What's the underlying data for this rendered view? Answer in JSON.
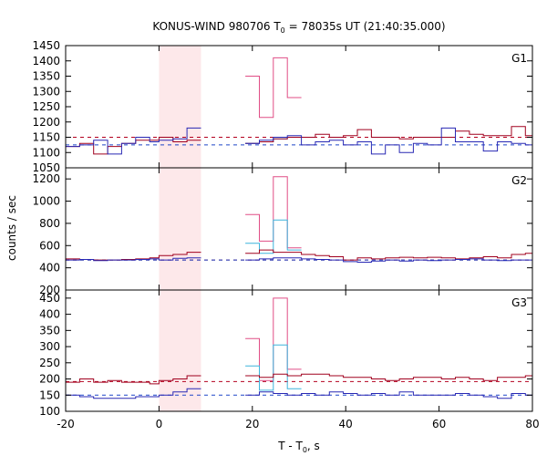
{
  "chart_data": {
    "type": "line",
    "title_main": "KONUS-WIND 980706 T",
    "title_sub": "0",
    "title_rest": " = 78035s UT (21:40:35.000)",
    "xlabel_main": "T - T",
    "xlabel_sub": "0",
    "xlabel_rest": ", s",
    "ylabel": "counts / sec",
    "xlim": [
      -20,
      80
    ],
    "xticks": [
      -20,
      0,
      20,
      40,
      60,
      80
    ],
    "highlight_interval": [
      0,
      9
    ],
    "colors": {
      "highlight": "#fde8ea",
      "dark_red": "#a0001e",
      "pink": "#e04e86",
      "blue": "#2828b4",
      "cyan": "#3cb4dc",
      "bg_red": "#b4001e",
      "bg_blue": "#1e46c8"
    },
    "panels": [
      {
        "label": "G1",
        "ylim": [
          1050,
          1450
        ],
        "yticks": [
          1050,
          1100,
          1150,
          1200,
          1250,
          1300,
          1350,
          1400,
          1450
        ],
        "bg_red": 1150,
        "bg_blue": 1125,
        "red_pre": {
          "edges": [
            -20,
            -17,
            -14,
            -11,
            -8,
            -5,
            -2,
            0,
            3,
            6,
            9
          ],
          "values": [
            1120,
            1130,
            1095,
            1120,
            1130,
            1140,
            1140,
            1150,
            1135,
            1140
          ]
        },
        "blue_pre": {
          "edges": [
            -20,
            -17,
            -14,
            -11,
            -8,
            -5,
            -2,
            0,
            3,
            6,
            9
          ],
          "values": [
            1120,
            1125,
            1140,
            1095,
            1130,
            1150,
            1135,
            1140,
            1145,
            1180
          ]
        },
        "red_post": {
          "edges": [
            18.5,
            21.5,
            24.5,
            27.5,
            30.5,
            33.5,
            36.5,
            39.5,
            42.5,
            45.5,
            48.5,
            51.5,
            54.5,
            57.5,
            60.5,
            63.5,
            66.5,
            69.5,
            72.5,
            75.5,
            78.5,
            80
          ],
          "values": [
            1130,
            1135,
            1145,
            1150,
            1150,
            1160,
            1150,
            1155,
            1175,
            1150,
            1150,
            1145,
            1150,
            1150,
            1150,
            1170,
            1160,
            1155,
            1155,
            1185,
            1155,
            1150
          ]
        },
        "blue_post": {
          "edges": [
            18.5,
            21.5,
            24.5,
            27.5,
            30.5,
            33.5,
            36.5,
            39.5,
            42.5,
            45.5,
            48.5,
            51.5,
            54.5,
            57.5,
            60.5,
            63.5,
            66.5,
            69.5,
            72.5,
            75.5,
            78.5,
            80
          ],
          "values": [
            1130,
            1140,
            1150,
            1155,
            1125,
            1135,
            1140,
            1125,
            1135,
            1095,
            1125,
            1100,
            1130,
            1125,
            1180,
            1135,
            1135,
            1105,
            1135,
            1130,
            1125,
            1130
          ]
        },
        "peak_outer": {
          "edges": [
            18.5,
            21.5,
            24.5,
            27.5,
            30.5
          ],
          "values": [
            1350,
            1215,
            1410,
            1280
          ]
        },
        "peak_inner": {
          "edges": [
            18.5,
            21.5,
            24.5,
            27.5,
            30.5
          ],
          "values": [
            1130,
            1135,
            1145,
            1150
          ]
        }
      },
      {
        "label": "G2",
        "ylim": [
          200,
          1300
        ],
        "yticks": [
          200,
          400,
          600,
          800,
          1000,
          1200
        ],
        "bg_red": 470,
        "bg_blue": 470,
        "red_pre": {
          "edges": [
            -20,
            -17,
            -14,
            -11,
            -8,
            -5,
            -2,
            0,
            3,
            6,
            9
          ],
          "values": [
            480,
            475,
            470,
            470,
            475,
            480,
            490,
            510,
            520,
            540
          ]
        },
        "blue_pre": {
          "edges": [
            -20,
            -17,
            -14,
            -11,
            -8,
            -5,
            -2,
            0,
            3,
            6,
            9
          ],
          "values": [
            470,
            475,
            465,
            470,
            470,
            475,
            480,
            470,
            485,
            490
          ]
        },
        "red_post": {
          "edges": [
            18.5,
            21.5,
            24.5,
            27.5,
            30.5,
            33.5,
            36.5,
            39.5,
            42.5,
            45.5,
            48.5,
            51.5,
            54.5,
            57.5,
            60.5,
            63.5,
            66.5,
            69.5,
            72.5,
            75.5,
            78.5,
            80
          ],
          "values": [
            530,
            560,
            540,
            540,
            520,
            510,
            500,
            470,
            490,
            480,
            490,
            495,
            490,
            495,
            490,
            480,
            490,
            500,
            490,
            520,
            530,
            530
          ]
        },
        "blue_post": {
          "edges": [
            18.5,
            21.5,
            24.5,
            27.5,
            30.5,
            33.5,
            36.5,
            39.5,
            42.5,
            45.5,
            48.5,
            51.5,
            54.5,
            57.5,
            60.5,
            63.5,
            66.5,
            69.5,
            72.5,
            75.5,
            78.5,
            80
          ],
          "values": [
            470,
            480,
            490,
            490,
            480,
            475,
            470,
            455,
            450,
            460,
            470,
            460,
            470,
            465,
            470,
            475,
            480,
            470,
            465,
            470,
            470,
            470
          ]
        },
        "peak_outer": {
          "edges": [
            18.5,
            21.5,
            24.5,
            27.5,
            30.5
          ],
          "values": [
            880,
            640,
            1220,
            580
          ]
        },
        "peak_inner": {
          "edges": [
            18.5,
            21.5,
            24.5,
            27.5,
            30.5
          ],
          "values": [
            620,
            530,
            830,
            560
          ]
        }
      },
      {
        "label": "G3",
        "ylim": [
          100,
          475
        ],
        "yticks": [
          100,
          150,
          200,
          250,
          300,
          350,
          400,
          450
        ],
        "bg_red": 192,
        "bg_blue": 150,
        "red_pre": {
          "edges": [
            -20,
            -17,
            -14,
            -11,
            -8,
            -5,
            -2,
            0,
            3,
            6,
            9
          ],
          "values": [
            190,
            200,
            190,
            195,
            190,
            190,
            185,
            195,
            200,
            210
          ]
        },
        "blue_pre": {
          "edges": [
            -20,
            -17,
            -14,
            -11,
            -8,
            -5,
            -2,
            0,
            3,
            6,
            9
          ],
          "values": [
            150,
            145,
            140,
            140,
            140,
            145,
            145,
            150,
            160,
            170
          ]
        },
        "red_post": {
          "edges": [
            18.5,
            21.5,
            24.5,
            27.5,
            30.5,
            33.5,
            36.5,
            39.5,
            42.5,
            45.5,
            48.5,
            51.5,
            54.5,
            57.5,
            60.5,
            63.5,
            66.5,
            69.5,
            72.5,
            75.5,
            78.5,
            80
          ],
          "values": [
            210,
            205,
            215,
            210,
            215,
            215,
            210,
            205,
            205,
            200,
            195,
            200,
            205,
            205,
            200,
            205,
            200,
            195,
            205,
            205,
            210,
            210
          ]
        },
        "blue_post": {
          "edges": [
            18.5,
            21.5,
            24.5,
            27.5,
            30.5,
            33.5,
            36.5,
            39.5,
            42.5,
            45.5,
            48.5,
            51.5,
            54.5,
            57.5,
            60.5,
            63.5,
            66.5,
            69.5,
            72.5,
            75.5,
            78.5,
            80
          ],
          "values": [
            150,
            160,
            155,
            150,
            155,
            150,
            160,
            155,
            150,
            155,
            150,
            160,
            150,
            150,
            150,
            155,
            150,
            145,
            140,
            155,
            150,
            145
          ]
        },
        "peak_outer": {
          "edges": [
            18.5,
            21.5,
            24.5,
            27.5,
            30.5
          ],
          "values": [
            325,
            195,
            450,
            230
          ]
        },
        "peak_inner": {
          "edges": [
            18.5,
            21.5,
            24.5,
            27.5,
            30.5
          ],
          "values": [
            240,
            165,
            305,
            170
          ]
        }
      }
    ]
  }
}
